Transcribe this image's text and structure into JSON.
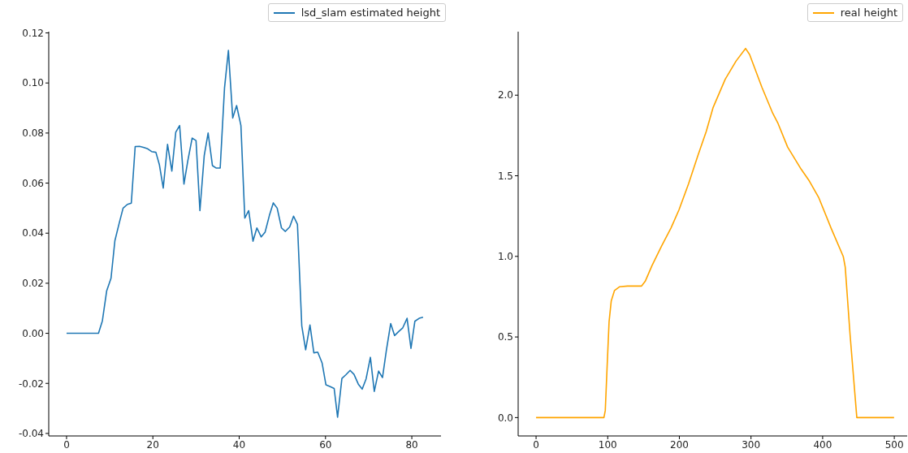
{
  "chart_data": [
    {
      "type": "line",
      "xlim": [
        -4.13,
        86.76
      ],
      "ylim": [
        -0.041,
        0.1205
      ],
      "xticks": [
        0,
        20,
        40,
        60,
        80
      ],
      "yticks": [
        -0.04,
        -0.02,
        {
          "value": 0,
          "label": "0.00"
        },
        0.02,
        0.04,
        0.06,
        0.08,
        {
          "value": 0.1,
          "label": "0.10"
        },
        0.12
      ],
      "legend": "top right",
      "grid": false,
      "marker": "none",
      "series": [
        {
          "name": "lsd_slam estimated height",
          "color": "#1f77b4",
          "x": [
            0,
            7.4,
            8.3,
            9.3,
            10.3,
            11.2,
            12.2,
            13.1,
            14.1,
            15,
            15.9,
            16.9,
            17.8,
            18.8,
            19.7,
            20.7,
            21.5,
            22.4,
            23.4,
            24.4,
            25.3,
            26.2,
            27.2,
            28.1,
            29.1,
            30,
            30.9,
            31.9,
            32.8,
            33.8,
            34.7,
            35.6,
            36.6,
            37.5,
            38.5,
            39.4,
            40.4,
            41.3,
            42.2,
            43.2,
            44.1,
            45.1,
            46,
            47,
            47.9,
            48.8,
            49.8,
            50.7,
            51.7,
            52.6,
            53.5,
            54.5,
            55.4,
            56.4,
            57.3,
            58.2,
            59.2,
            60.1,
            61.1,
            62,
            62.8,
            63.8,
            64.7,
            65.7,
            66.6,
            67.6,
            68.5,
            69.4,
            70.4,
            71.3,
            72.3,
            73.2,
            74.1,
            75.1,
            76,
            77,
            77.9,
            78.9,
            79.8,
            80.7,
            81.7,
            82.6
          ],
          "values": [
            0,
            0,
            0.005,
            0.017,
            0.022,
            0.037,
            0.044,
            0.05,
            0.0515,
            0.052,
            0.0746,
            0.0747,
            0.0743,
            0.0737,
            0.0726,
            0.0723,
            0.0674,
            0.058,
            0.0755,
            0.0648,
            0.0803,
            0.083,
            0.0596,
            0.069,
            0.078,
            0.077,
            0.049,
            0.071,
            0.08,
            0.067,
            0.066,
            0.066,
            0.098,
            0.113,
            0.086,
            0.091,
            0.083,
            0.046,
            0.049,
            0.0368,
            0.0421,
            0.0385,
            0.0404,
            0.0471,
            0.0521,
            0.05,
            0.0421,
            0.0407,
            0.0425,
            0.0468,
            0.0435,
            0.003,
            -0.0066,
            0.0033,
            -0.0078,
            -0.0075,
            -0.0118,
            -0.0206,
            -0.0213,
            -0.022,
            -0.0335,
            -0.018,
            -0.0166,
            -0.0148,
            -0.0164,
            -0.0203,
            -0.0223,
            -0.0182,
            -0.0096,
            -0.0232,
            -0.0151,
            -0.0177,
            -0.0068,
            0.0039,
            -0.0009,
            0.0008,
            0.0022,
            0.006,
            -0.006,
            0.0048,
            0.006,
            0.0064
          ]
        }
      ]
    },
    {
      "type": "line",
      "xlim": [
        -25,
        518
      ],
      "ylim": [
        -0.114,
        2.394
      ],
      "xticks": [
        0,
        100,
        200,
        300,
        400,
        500
      ],
      "yticks": [
        {
          "value": 0,
          "label": "0.0"
        },
        0.5,
        {
          "value": 1,
          "label": "1.0"
        },
        1.5,
        {
          "value": 2,
          "label": "2.0"
        }
      ],
      "legend": "top right",
      "grid": false,
      "marker": "none",
      "series": [
        {
          "name": "real height",
          "color": "#ffa500",
          "x": [
            0,
            94.7,
            96.6,
            99.2,
            101.9,
            104.9,
            109.4,
            116.3,
            127.6,
            147.3,
            152.3,
            161.7,
            175,
            188.3,
            199.6,
            212.9,
            226.1,
            237.5,
            246.9,
            264,
            279.2,
            292.4,
            298.1,
            315.1,
            330.3,
            337.8,
            351.1,
            370.1,
            381.5,
            394.7,
            411.7,
            428.8,
            431.5,
            438.3,
            447.7,
            499.7
          ],
          "values": [
            0,
            0,
            0.044,
            0.319,
            0.594,
            0.723,
            0.788,
            0.811,
            0.816,
            0.816,
            0.845,
            0.942,
            1.063,
            1.176,
            1.29,
            1.451,
            1.629,
            1.775,
            1.921,
            2.099,
            2.212,
            2.29,
            2.252,
            2.05,
            1.888,
            1.824,
            1.678,
            1.54,
            1.467,
            1.363,
            1.176,
            0.999,
            0.934,
            0.513,
            0,
            0
          ]
        }
      ]
    }
  ]
}
